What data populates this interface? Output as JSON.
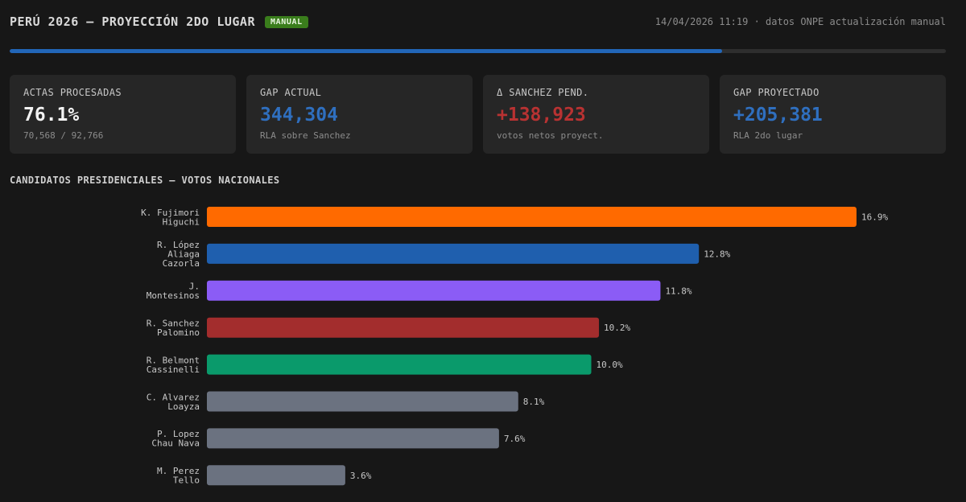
{
  "header": {
    "title": "PERÚ 2026 — PROYECCIÓN 2DO LUGAR",
    "badge": "MANUAL",
    "meta": "14/04/2026 11:19 · datos ONPE actualización manual"
  },
  "progress": {
    "percent": 76.1,
    "color": "#2266b8"
  },
  "cards": [
    {
      "label": "ACTAS PROCESADAS",
      "value": "76.1%",
      "sub": "70,568 / 92,766",
      "color": "#f2f2f2"
    },
    {
      "label": "GAP ACTUAL",
      "value": "344,304",
      "sub": "RLA sobre Sanchez",
      "color": "#2f6fbf"
    },
    {
      "label": "Δ SANCHEZ PEND.",
      "value": "+138,923",
      "sub": "votos netos proyect.",
      "color": "#b83232"
    },
    {
      "label": "GAP PROYECTADO",
      "value": "+205,381",
      "sub": "RLA 2do lugar",
      "color": "#2f6fbf"
    }
  ],
  "section_title": "CANDIDATOS PRESIDENCIALES — VOTOS NACIONALES",
  "chart_data": {
    "type": "bar",
    "orientation": "horizontal",
    "title": "CANDIDATOS PRESIDENCIALES — VOTOS NACIONALES",
    "unit": "%",
    "categories": [
      "K. Fujimori Higuchi",
      "R. López Aliaga Cazorla",
      "J. Montesinos",
      "R. Sanchez Palomino",
      "R. Belmont Cassinelli",
      "C. Alvarez Loayza",
      "P. Lopez Chau Nava",
      "M. Perez Tello"
    ],
    "category_lines": [
      [
        "K. Fujimori",
        "Higuchi"
      ],
      [
        "R. López",
        "Aliaga",
        "Cazorla"
      ],
      [
        "J.",
        "Montesinos"
      ],
      [
        "R. Sanchez",
        "Palomino"
      ],
      [
        "R. Belmont",
        "Cassinelli"
      ],
      [
        "C. Alvarez",
        "Loayza"
      ],
      [
        "P. Lopez",
        "Chau Nava"
      ],
      [
        "M. Perez",
        "Tello"
      ]
    ],
    "values": [
      16.9,
      12.8,
      11.8,
      10.2,
      10.0,
      8.1,
      7.6,
      3.6
    ],
    "value_labels": [
      "16.9%",
      "12.8%",
      "11.8%",
      "10.2%",
      "10.0%",
      "8.1%",
      "7.6%",
      "3.6%"
    ],
    "colors": [
      "#ff6a00",
      "#1f5fae",
      "#8b5cf6",
      "#a32d2d",
      "#0a9a6b",
      "#6b7280",
      "#6b7280",
      "#6b7280"
    ],
    "grid": false,
    "legend": "none"
  }
}
